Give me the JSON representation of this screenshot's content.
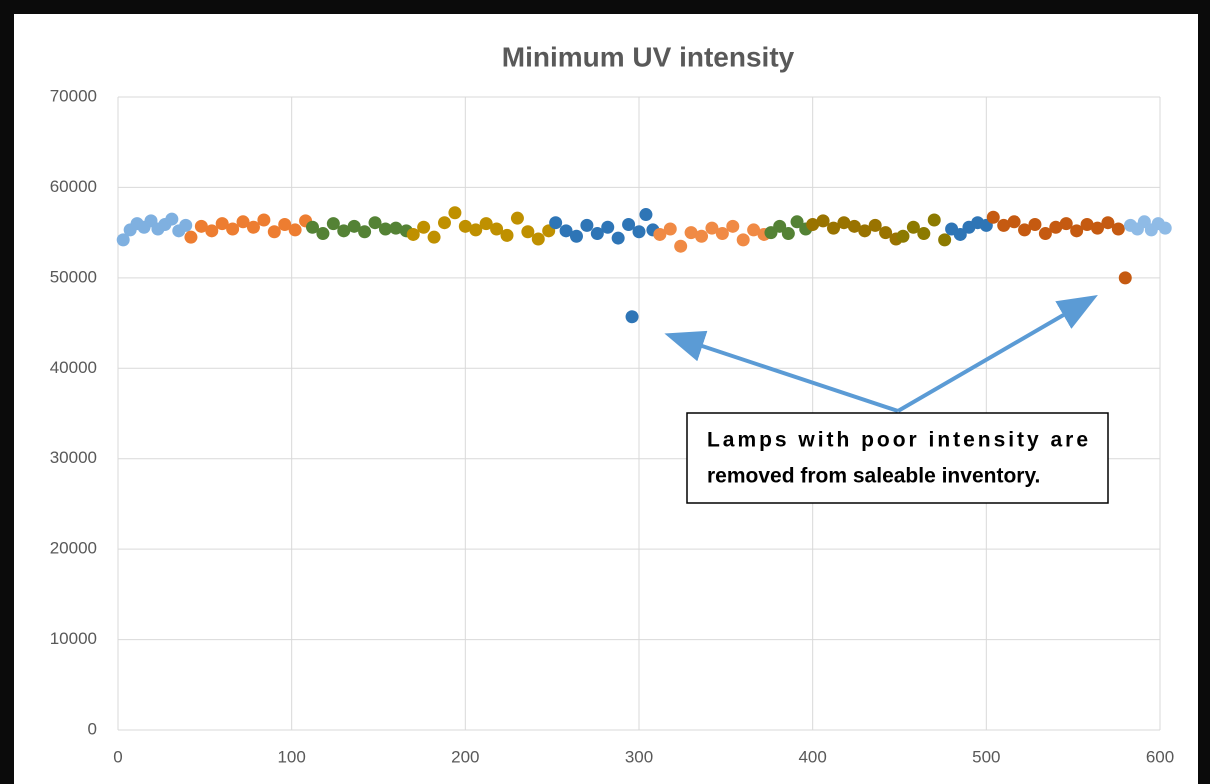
{
  "chart_data": {
    "type": "scatter",
    "title": "Minimum UV intensity",
    "xlim": [
      0,
      600
    ],
    "xticks": [
      0,
      100,
      200,
      300,
      400,
      500,
      600
    ],
    "ylim": [
      0,
      70000
    ],
    "yticks": [
      0,
      10000,
      20000,
      30000,
      40000,
      50000,
      60000,
      70000
    ],
    "grid": true,
    "annotation": [
      "Lamps with poor intensity are",
      "removed from saleable inventory."
    ],
    "series": [
      {
        "color": "#7fb0e0",
        "x": [
          3,
          7,
          11,
          15,
          19,
          23,
          27,
          31,
          35,
          39
        ],
        "values": [
          54200,
          55300,
          56000,
          55600,
          56300,
          55400,
          55900,
          56500,
          55200,
          55800
        ]
      },
      {
        "color": "#ed7d31",
        "x": [
          42,
          48,
          54,
          60,
          66,
          72,
          78,
          84,
          90,
          96,
          102,
          108
        ],
        "values": [
          54500,
          55700,
          55200,
          56000,
          55400,
          56200,
          55600,
          56400,
          55100,
          55900,
          55300,
          56300
        ]
      },
      {
        "color": "#548235",
        "x": [
          112,
          118,
          124,
          130,
          136,
          142,
          148,
          154,
          160,
          166
        ],
        "values": [
          55600,
          54900,
          56000,
          55200,
          55700,
          55100,
          56100,
          55400,
          55500,
          55200
        ]
      },
      {
        "color": "#bf9000",
        "x": [
          170,
          176,
          182,
          188,
          194,
          200,
          206,
          212,
          218,
          224,
          230,
          236,
          242,
          248
        ],
        "values": [
          54800,
          55600,
          54500,
          56100,
          57200,
          55700,
          55300,
          56000,
          55400,
          54700,
          56600,
          55100,
          54300,
          55200
        ]
      },
      {
        "color": "#2e75b6",
        "x": [
          252,
          258,
          264,
          270,
          276,
          282,
          288,
          294,
          296,
          300,
          304,
          308
        ],
        "values": [
          56100,
          55200,
          54600,
          55800,
          54900,
          55600,
          54400,
          55900,
          45700,
          55100,
          57000,
          55300
        ]
      },
      {
        "color": "#f08a45",
        "x": [
          312,
          318,
          324,
          330,
          336,
          342,
          348,
          354,
          360,
          366,
          372
        ],
        "values": [
          54800,
          55400,
          53500,
          55000,
          54600,
          55500,
          54900,
          55700,
          54200,
          55300,
          54800
        ]
      },
      {
        "color": "#548235",
        "x": [
          376,
          381,
          386,
          391,
          396
        ],
        "values": [
          55000,
          55700,
          54900,
          56200,
          55400
        ]
      },
      {
        "color": "#997300",
        "x": [
          400,
          406,
          412,
          418,
          424,
          430,
          436,
          442,
          448
        ],
        "values": [
          55900,
          56300,
          55500,
          56100,
          55700,
          55200,
          55800,
          55000,
          54300
        ]
      },
      {
        "color": "#8c7a00",
        "x": [
          452,
          458,
          464,
          470,
          476
        ],
        "values": [
          54600,
          55600,
          54900,
          56400,
          54200
        ]
      },
      {
        "color": "#2e75b6",
        "x": [
          480,
          485,
          490,
          495,
          500
        ],
        "values": [
          55400,
          54800,
          55600,
          56100,
          55800
        ]
      },
      {
        "color": "#c55a11",
        "x": [
          504,
          510,
          516,
          522,
          528,
          534,
          540,
          546,
          552,
          558,
          564,
          570,
          576,
          580
        ],
        "values": [
          56700,
          55800,
          56200,
          55300,
          55900,
          54900,
          55600,
          56000,
          55200,
          55900,
          55500,
          56100,
          55400,
          50000
        ]
      },
      {
        "color": "#8fbbe6",
        "x": [
          583,
          587,
          591,
          595,
          599,
          603
        ],
        "values": [
          55800,
          55400,
          56200,
          55300,
          56000,
          55500
        ]
      }
    ]
  }
}
